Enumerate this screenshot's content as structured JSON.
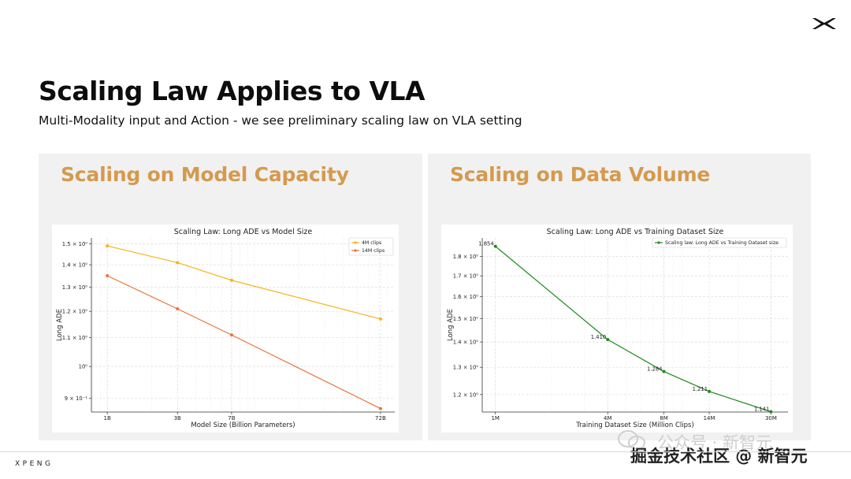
{
  "page": {
    "title": "Scaling Law Applies to VLA",
    "subtitle": "Multi-Modality input and Action - we see preliminary scaling law on VLA setting",
    "brand": "XPENG",
    "watermark_top": "公众号 · 新智元",
    "watermark_bottom": "掘金技术社区 @ 新智元"
  },
  "panels": {
    "left_title": "Scaling on Model Capacity",
    "right_title": "Scaling on Data Volume"
  },
  "chart_data": [
    {
      "type": "line",
      "title": "Scaling Law: Long ADE vs Model Size",
      "xlabel": "Model Size (Billion Parameters)",
      "ylabel": "Long ADE",
      "x_scale": "log",
      "y_scale": "log",
      "categories": [
        "1B",
        "3B",
        "7B",
        "72B"
      ],
      "x": [
        1,
        3,
        7,
        72
      ],
      "xlim": [
        0.78,
        90
      ],
      "ylim": [
        0.86,
        1.53
      ],
      "yticks": [
        {
          "value": 0.9,
          "label": "9 × 10⁻¹"
        },
        {
          "value": 1.0,
          "label": "10⁰"
        },
        {
          "value": 1.1,
          "label": "1.1 × 10⁰"
        },
        {
          "value": 1.2,
          "label": "1.2 × 10⁰"
        },
        {
          "value": 1.3,
          "label": "1.3 × 10⁰"
        },
        {
          "value": 1.4,
          "label": "1.4 × 10⁰"
        },
        {
          "value": 1.5,
          "label": "1.5 × 10⁰"
        }
      ],
      "series": [
        {
          "name": "4M clips",
          "color": "#f5b41a",
          "values": [
            1.49,
            1.41,
            1.33,
            1.17
          ]
        },
        {
          "name": "14M clips",
          "color": "#e8743b",
          "values": [
            1.35,
            1.21,
            1.11,
            0.87
          ]
        }
      ],
      "legend": "top-right",
      "grid": true
    },
    {
      "type": "line",
      "title": "Scaling Law: Long ADE vs Training Dataset Size",
      "xlabel": "Training Dataset Size (Million Clips)",
      "ylabel": "Long ADE",
      "x_scale": "log",
      "y_scale": "log",
      "categories": [
        "1M",
        "4M",
        "8M",
        "14M",
        "30M"
      ],
      "x": [
        1,
        4,
        8,
        14,
        30
      ],
      "xlim": [
        0.85,
        37
      ],
      "ylim": [
        1.14,
        1.9
      ],
      "yticks": [
        {
          "value": 1.2,
          "label": "1.2 × 10⁰"
        },
        {
          "value": 1.3,
          "label": "1.3 × 10⁰"
        },
        {
          "value": 1.4,
          "label": "1.4 × 10⁰"
        },
        {
          "value": 1.5,
          "label": "1.5 × 10⁰"
        },
        {
          "value": 1.6,
          "label": "1.6 × 10⁰"
        },
        {
          "value": 1.7,
          "label": "1.7 × 10⁰"
        },
        {
          "value": 1.8,
          "label": "1.8 × 10⁰"
        }
      ],
      "series": [
        {
          "name": "Scaling law: Long ADE vs Training Dataset size",
          "color": "#1e8a1e",
          "values": [
            1.854,
            1.41,
            1.284,
            1.211,
            1.141
          ]
        }
      ],
      "data_labels": [
        "1.854",
        "1.410",
        "1.284",
        "1.211",
        "1.141"
      ],
      "legend": "top-right",
      "grid": true
    }
  ]
}
